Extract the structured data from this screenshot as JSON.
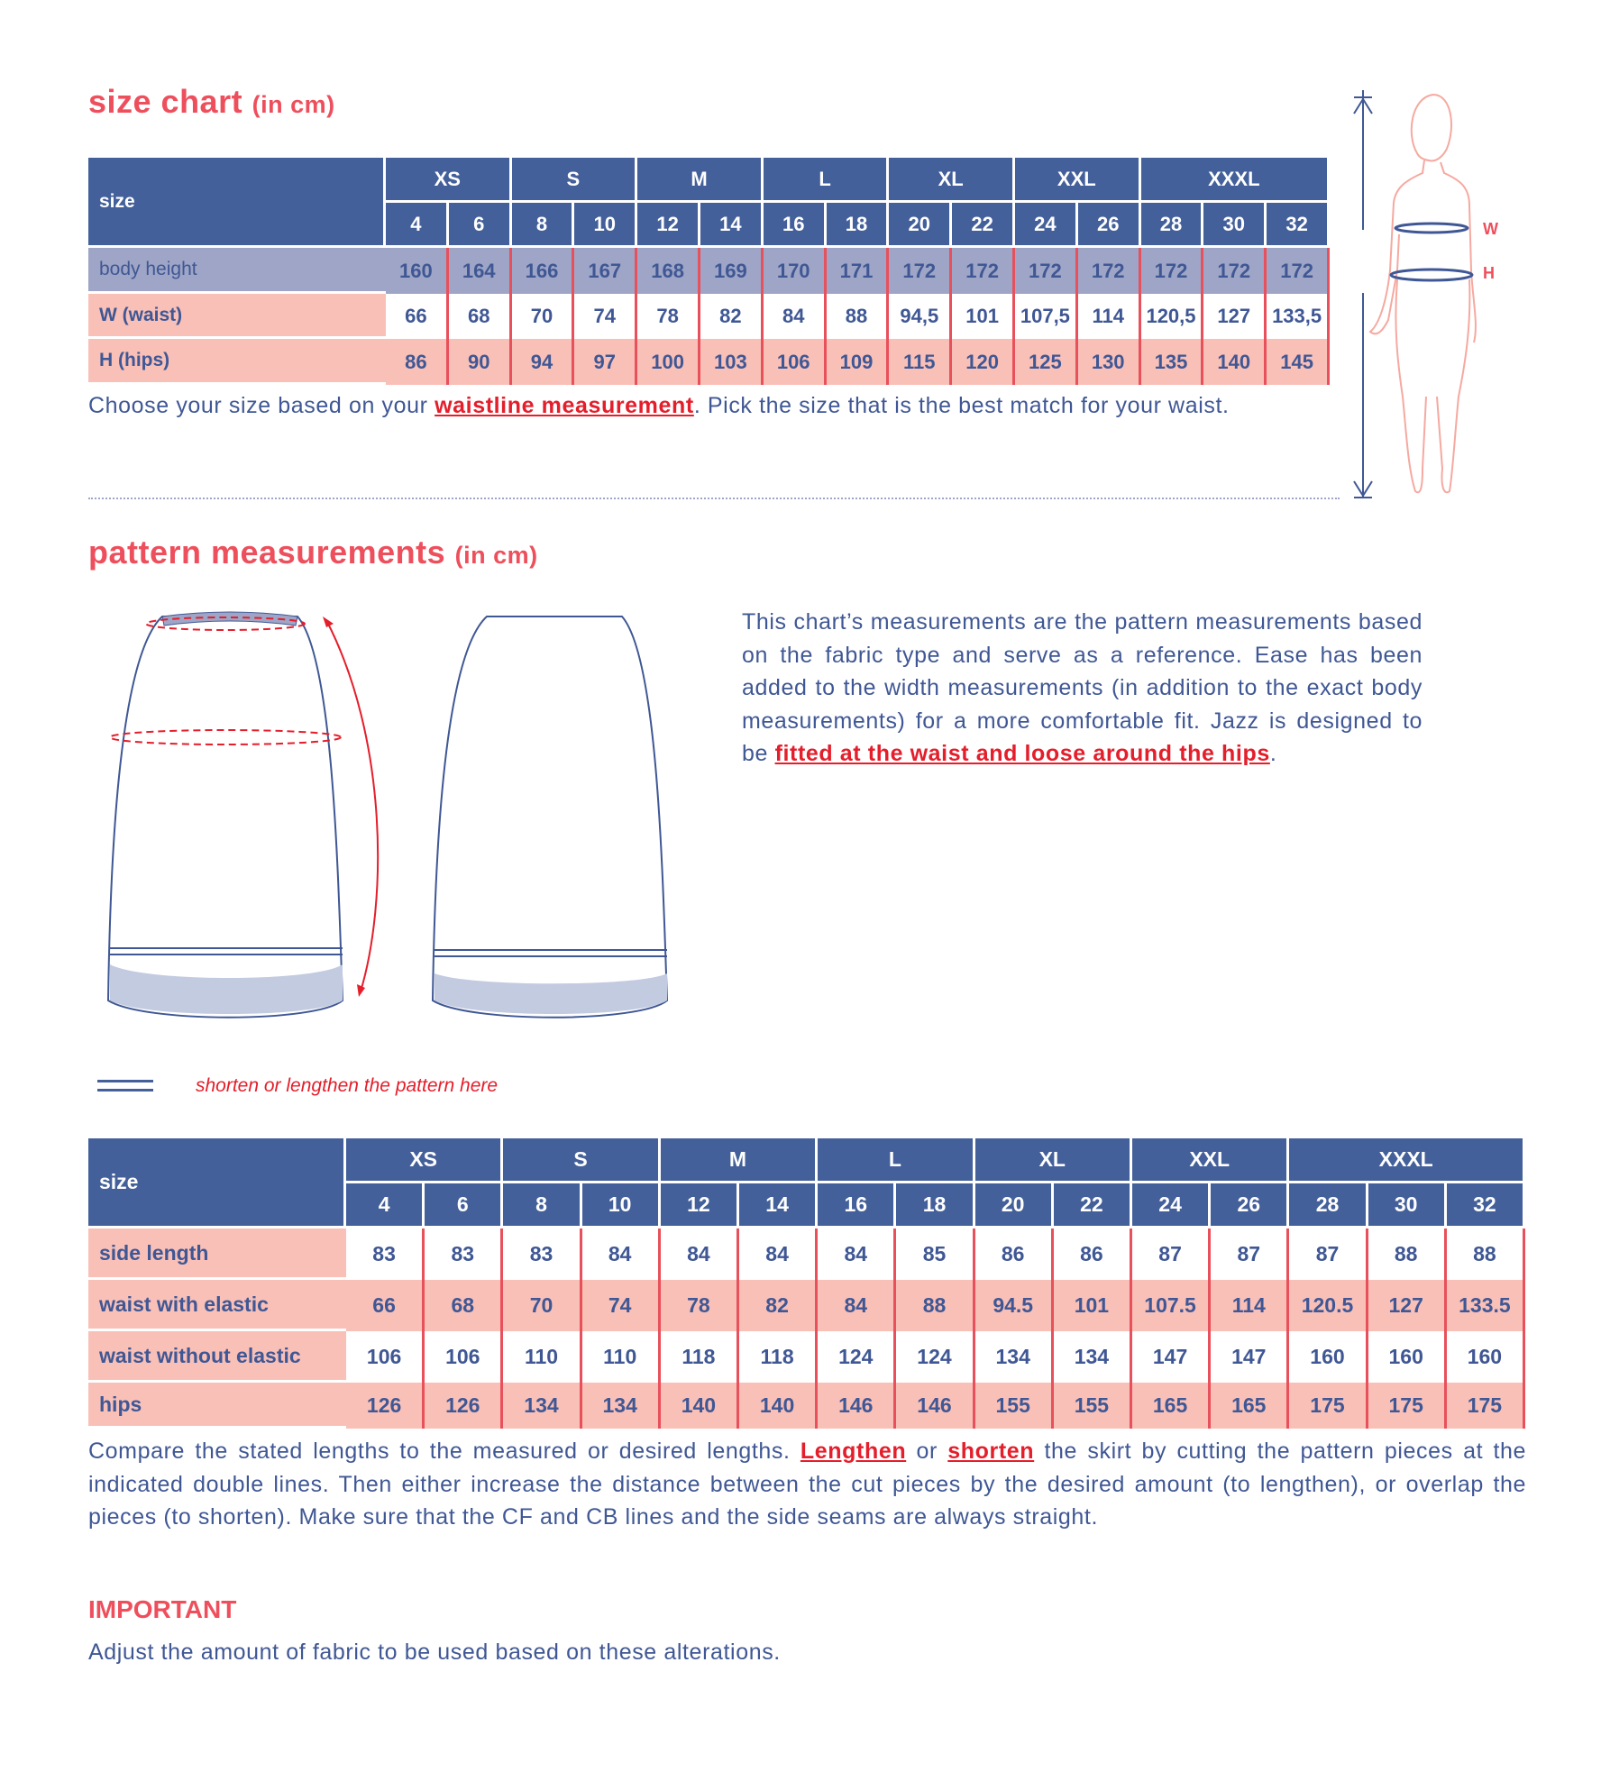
{
  "size_chart": {
    "title": "size chart",
    "unit": "(in cm)",
    "size_label": "size",
    "groups": [
      "XS",
      "S",
      "M",
      "L",
      "XL",
      "XXL",
      "XXXL"
    ],
    "sizes": [
      "4",
      "6",
      "8",
      "10",
      "12",
      "14",
      "16",
      "18",
      "20",
      "22",
      "24",
      "26",
      "28",
      "30",
      "32"
    ],
    "rows": [
      {
        "label": "body height",
        "values": [
          "160",
          "164",
          "166",
          "167",
          "168",
          "169",
          "170",
          "171",
          "172",
          "172",
          "172",
          "172",
          "172",
          "172",
          "172"
        ]
      },
      {
        "label": "W (waist)",
        "values": [
          "66",
          "68",
          "70",
          "74",
          "78",
          "82",
          "84",
          "88",
          "94,5",
          "101",
          "107,5",
          "114",
          "120,5",
          "127",
          "133,5"
        ]
      },
      {
        "label": "H (hips)",
        "values": [
          "86",
          "90",
          "94",
          "97",
          "100",
          "103",
          "106",
          "109",
          "115",
          "120",
          "125",
          "130",
          "135",
          "140",
          "145"
        ]
      }
    ],
    "note_before": "Choose your size based on your ",
    "note_link": "waistline measurement",
    "note_after": ". Pick the size that is the best match for your waist."
  },
  "figure": {
    "waist_marker": "W",
    "hips_marker": "H"
  },
  "pattern": {
    "title": "pattern measurements",
    "unit": "(in cm)",
    "desc_before": "This chart’s measurements are the pattern measurements based on the fabric type and serve as a reference. Ease has been added to the width measurements (in addition to the exact body measurements) for a more comfortable fit. Jazz is designed to be ",
    "desc_link": "fitted at the waist and loose around the hips",
    "desc_after": ".",
    "legend": "shorten or lengthen the pattern here",
    "size_label": "size",
    "groups": [
      "XS",
      "S",
      "M",
      "L",
      "XL",
      "XXL",
      "XXXL"
    ],
    "sizes": [
      "4",
      "6",
      "8",
      "10",
      "12",
      "14",
      "16",
      "18",
      "20",
      "22",
      "24",
      "26",
      "28",
      "30",
      "32"
    ],
    "rows": [
      {
        "label": "side length",
        "values": [
          "83",
          "83",
          "83",
          "84",
          "84",
          "84",
          "84",
          "85",
          "86",
          "86",
          "87",
          "87",
          "87",
          "88",
          "88"
        ]
      },
      {
        "label": "waist with elastic",
        "values": [
          "66",
          "68",
          "70",
          "74",
          "78",
          "82",
          "84",
          "88",
          "94.5",
          "101",
          "107.5",
          "114",
          "120.5",
          "127",
          "133.5"
        ]
      },
      {
        "label": "waist without elastic",
        "values": [
          "106",
          "106",
          "110",
          "110",
          "118",
          "118",
          "124",
          "124",
          "134",
          "134",
          "147",
          "147",
          "160",
          "160",
          "160"
        ]
      },
      {
        "label": "hips",
        "values": [
          "126",
          "126",
          "134",
          "134",
          "140",
          "140",
          "146",
          "146",
          "155",
          "155",
          "165",
          "165",
          "175",
          "175",
          "175"
        ]
      }
    ],
    "note_1": "Compare the stated lengths to the measured or desired lengths. ",
    "note_link1": "Lengthen",
    "note_2": " or ",
    "note_link2": "shorten",
    "note_3": " the skirt by cutting the pattern pieces at the indicated double lines. Then either increase the distance between the cut pieces by the desired amount (to lengthen), or overlap the pieces (to shorten). Make sure that the CF and CB lines and the side seams are always straight.",
    "important_title": "IMPORTANT",
    "important_text": "Adjust the amount of fabric to be used based on these alterations."
  },
  "colors": {
    "header": "#44609a",
    "body_height_row": "#9ea5c6",
    "pink_row": "#f9c0b8",
    "accent_red": "#ee4f5c",
    "text_blue": "#3f5794"
  }
}
